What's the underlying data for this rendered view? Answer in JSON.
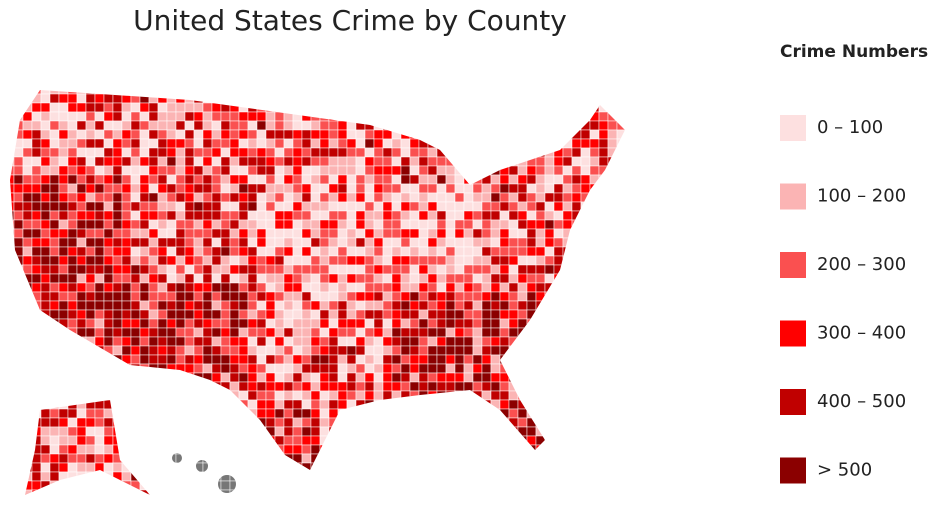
{
  "title": "United States Crime by County",
  "legend": {
    "title": "Crime Numbers",
    "items": [
      {
        "label": "0 – 100",
        "color": "#fde0e0"
      },
      {
        "label": "100 – 200",
        "color": "#fbb4b4"
      },
      {
        "label": "200 – 300",
        "color": "#fa5050"
      },
      {
        "label": "300 – 400",
        "color": "#ff0000"
      },
      {
        "label": "400 – 500",
        "color": "#c00000"
      },
      {
        "label": "> 500",
        "color": "#8b0000"
      }
    ]
  }
}
